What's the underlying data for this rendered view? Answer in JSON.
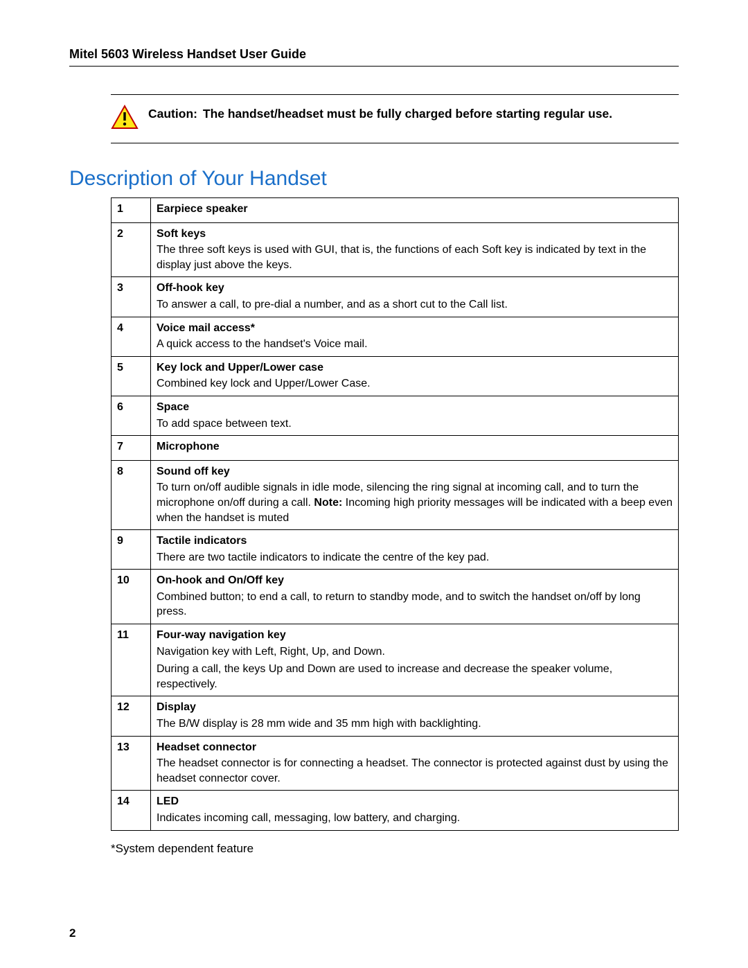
{
  "header": {
    "title": "Mitel 5603 Wireless Handset User Guide"
  },
  "caution": {
    "label": "Caution:",
    "text": "The handset/headset must be fully charged before starting regular use."
  },
  "section": {
    "title": "Description of Your Handset"
  },
  "table": {
    "rows": [
      {
        "num": "1",
        "title": "Earpiece speaker",
        "desc": []
      },
      {
        "num": "2",
        "title": "Soft keys",
        "desc": [
          "The three soft keys is used with GUI, that is, the functions of each Soft key is indicated by text in the display just above the keys."
        ]
      },
      {
        "num": "3",
        "title": "Off-hook key",
        "desc": [
          "To answer a call, to pre-dial a number, and as a short cut to the Call list."
        ]
      },
      {
        "num": "4",
        "title": "Voice mail access*",
        "desc": [
          "A quick access to the handset's Voice mail."
        ]
      },
      {
        "num": "5",
        "title": "Key lock and Upper/Lower case",
        "desc": [
          "Combined key lock and Upper/Lower Case."
        ]
      },
      {
        "num": "6",
        "title": "Space",
        "desc": [
          "To add space between text."
        ]
      },
      {
        "num": "7",
        "title": "Microphone",
        "desc": []
      },
      {
        "num": "8",
        "title": "Sound off key",
        "desc": [],
        "desc_html": "To turn on/off audible signals in idle mode, silencing the ring signal at incoming call, and to turn the microphone on/off during a call. <b>Note:</b> Incoming high priority messages will be indicated with a beep even when the handset is muted"
      },
      {
        "num": "9",
        "title": "Tactile indicators",
        "desc": [
          "There are two tactile indicators to indicate the centre of the key pad."
        ]
      },
      {
        "num": "10",
        "title": "On-hook and On/Off key",
        "desc": [
          "Combined button; to end a call, to return to standby mode, and to switch the handset on/off by long press."
        ]
      },
      {
        "num": "11",
        "title": "Four-way navigation key",
        "desc": [
          "Navigation key with Left, Right, Up, and Down.",
          "During a call, the keys Up and Down are used to increase and decrease the speaker volume, respectively."
        ]
      },
      {
        "num": "12",
        "title": "Display",
        "desc": [
          "The B/W display is 28 mm wide and 35 mm high with backlighting."
        ]
      },
      {
        "num": "13",
        "title": "Headset connector",
        "desc": [
          "The headset connector is for connecting a headset. The connector is protected against dust by using the headset connector cover."
        ]
      },
      {
        "num": "14",
        "title": "LED",
        "desc": [
          "Indicates incoming call, messaging, low battery, and charging."
        ]
      }
    ]
  },
  "footnote": "*System dependent feature",
  "page_number": "2",
  "colors": {
    "heading": "#1a6fc9",
    "caution_fill": "#ffe817",
    "caution_stroke": "#c00000",
    "text": "#000000",
    "background": "#ffffff",
    "border": "#000000"
  },
  "typography": {
    "body_font": "Arial",
    "header_size_pt": 13,
    "section_title_size_pt": 22,
    "table_size_pt": 12,
    "footnote_size_pt": 13
  }
}
